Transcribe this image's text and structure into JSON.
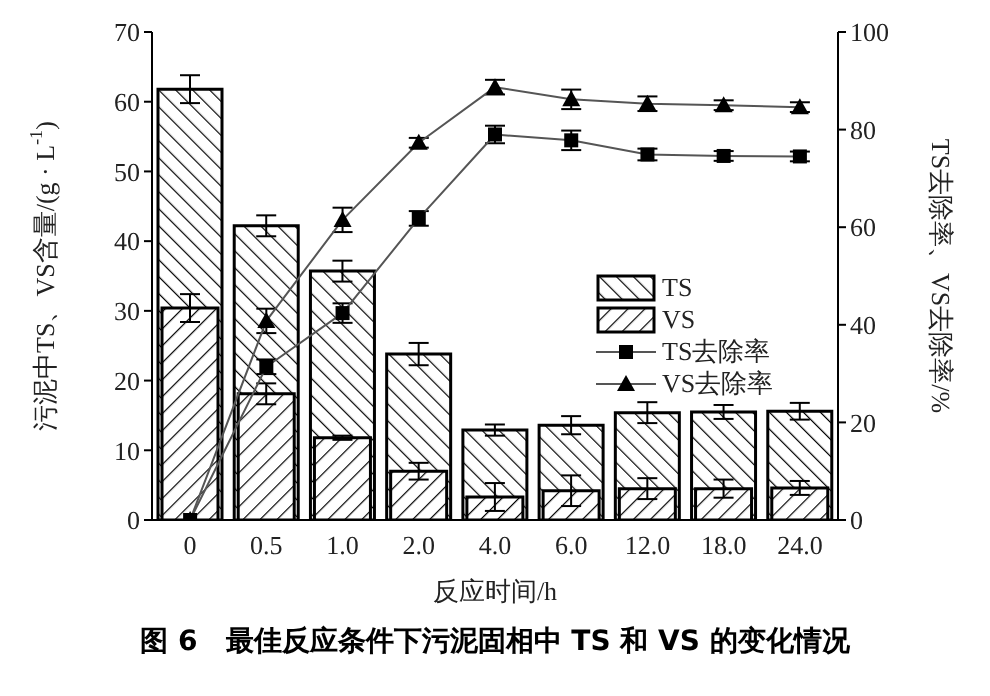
{
  "chart_data": {
    "type": "bar",
    "title": "图 6　最佳反应条件下污泥固相中 TS 和 VS 的变化情况",
    "xlabel": "反应时间/h",
    "ylabel": "污泥中TS、VS含量/(g · L$^{-1}$)",
    "y2label": "TS去除率、VS去除率/%",
    "categories": [
      "0",
      "0.5",
      "1.0",
      "2.0",
      "4.0",
      "6.0",
      "12.0",
      "18.0",
      "24.0"
    ],
    "series": [
      {
        "name": "TS",
        "type": "bar",
        "color": "#000000",
        "values": [
          61.8,
          42.2,
          35.7,
          23.8,
          12.9,
          13.6,
          15.4,
          15.5,
          15.6
        ],
        "errors": [
          2.0,
          1.5,
          1.5,
          1.6,
          0.8,
          1.3,
          1.5,
          1.0,
          1.2
        ]
      },
      {
        "name": "VS",
        "type": "bar",
        "color": "#000000",
        "values": [
          30.4,
          18.1,
          11.8,
          7.0,
          3.3,
          4.2,
          4.5,
          4.5,
          4.6
        ],
        "errors": [
          2.0,
          1.5,
          0.3,
          1.2,
          2.0,
          2.2,
          1.5,
          1.3,
          1.0
        ]
      },
      {
        "name": "TS去除率",
        "type": "line",
        "axis": "y2",
        "marker": "square",
        "color": "#000000",
        "values": [
          0,
          31.4,
          42.4,
          61.8,
          79.0,
          77.8,
          74.9,
          74.6,
          74.5
        ],
        "errors": [
          null,
          1.5,
          2.0,
          1.5,
          1.8,
          2.0,
          1.2,
          1.0,
          1.0
        ]
      },
      {
        "name": "VS去除率",
        "type": "line",
        "axis": "y2",
        "marker": "triangle",
        "color": "#000000",
        "values": [
          0,
          40.8,
          61.5,
          77.3,
          88.7,
          86.2,
          85.3,
          85.0,
          84.6
        ],
        "errors": [
          null,
          2.5,
          2.5,
          1.0,
          1.5,
          2.0,
          1.5,
          1.0,
          1.0
        ]
      }
    ],
    "ylim": [
      0,
      70
    ],
    "yticks": [
      0,
      10,
      20,
      30,
      40,
      50,
      60,
      70
    ],
    "y2lim": [
      0,
      100
    ],
    "y2ticks": [
      0,
      20,
      40,
      60,
      80,
      100
    ],
    "line_style": "solid",
    "legend": "right",
    "grid": false
  }
}
